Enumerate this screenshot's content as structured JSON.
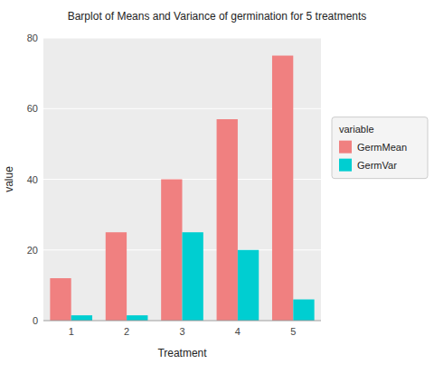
{
  "chart_data": {
    "type": "bar",
    "title": "Barplot of Means and Variance of germination for 5 treatments",
    "xlabel": "Treatment",
    "ylabel": "value",
    "categories": [
      "1",
      "2",
      "3",
      "4",
      "5"
    ],
    "series": [
      {
        "name": "GermMean",
        "color": "#F08080",
        "values": [
          12,
          25,
          40,
          57,
          75
        ]
      },
      {
        "name": "GermVar",
        "color": "#00CED1",
        "values": [
          1.5,
          1.5,
          25,
          20,
          6
        ]
      }
    ],
    "ylim": [
      0,
      80
    ],
    "yticks": [
      0,
      20,
      40,
      60,
      80
    ],
    "grid": true,
    "legend": "right",
    "legend_title": "variable"
  }
}
